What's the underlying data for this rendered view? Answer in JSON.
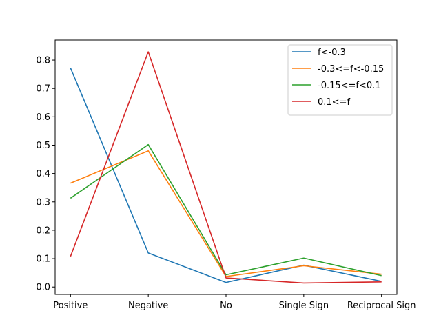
{
  "chart_data": {
    "type": "line",
    "categories": [
      "Positive",
      "Negative",
      "No",
      "Single Sign",
      "Reciprocal Sign"
    ],
    "series": [
      {
        "name": "f<-0.3",
        "color": "#1f77b4",
        "values": [
          0.772,
          0.12,
          0.016,
          0.077,
          0.02
        ]
      },
      {
        "name": "-0.3<=f<-0.15",
        "color": "#ff7f0e",
        "values": [
          0.366,
          0.48,
          0.037,
          0.075,
          0.045
        ]
      },
      {
        "name": "-0.15<=f<0.1",
        "color": "#2ca02c",
        "values": [
          0.313,
          0.502,
          0.043,
          0.102,
          0.04
        ]
      },
      {
        "name": "0.1<=f",
        "color": "#d62728",
        "values": [
          0.108,
          0.829,
          0.032,
          0.014,
          0.018
        ]
      }
    ],
    "title": "",
    "xlabel": "",
    "ylabel": "",
    "ylim": [
      -0.0262,
      0.8706
    ],
    "yticks": [
      0.0,
      0.1,
      0.2,
      0.3,
      0.4,
      0.5,
      0.6,
      0.7,
      0.8
    ],
    "ytick_labels": [
      "0.0",
      "0.1",
      "0.2",
      "0.3",
      "0.4",
      "0.5",
      "0.6",
      "0.7",
      "0.8"
    ],
    "grid": false,
    "legend": "top-right"
  }
}
